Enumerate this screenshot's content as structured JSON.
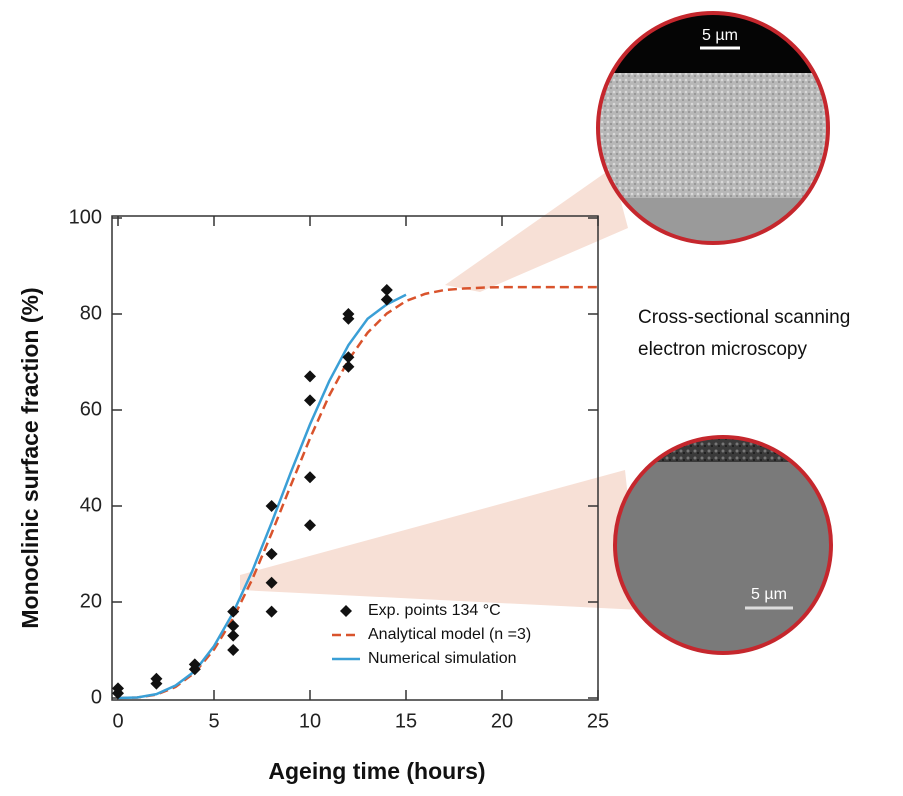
{
  "chart_data": {
    "type": "scatter-line",
    "xlabel": "Ageing time (hours)",
    "ylabel": "Monoclinic surface fraction (%)",
    "xlim": [
      0,
      25
    ],
    "ylim": [
      0,
      100
    ],
    "xticks": [
      0,
      5,
      10,
      15,
      20,
      25
    ],
    "yticks": [
      0,
      20,
      40,
      60,
      80,
      100
    ],
    "legend_position": "lower right",
    "series": [
      {
        "name": "Exp. points 134 °C",
        "kind": "scatter",
        "color": "#111111",
        "x": [
          0,
          0,
          2,
          2,
          4,
          4,
          6,
          6,
          6,
          6,
          8,
          8,
          8,
          8,
          10,
          10,
          10,
          10,
          12,
          12,
          12,
          12,
          14,
          14
        ],
        "values": [
          1,
          2,
          3,
          4,
          6,
          7,
          10,
          13,
          15,
          18,
          18,
          24,
          30,
          40,
          36,
          46,
          62,
          67,
          69,
          71,
          79,
          80,
          83,
          85
        ]
      },
      {
        "name": "Analytical model (n =3)",
        "kind": "dashed",
        "color": "#d9532c",
        "x": [
          0,
          1,
          2,
          3,
          4,
          5,
          6,
          7,
          8,
          9,
          10,
          11,
          12,
          13,
          14,
          15,
          16,
          17,
          18,
          19,
          20,
          21,
          22,
          23,
          24,
          25
        ],
        "values": [
          0,
          0.1,
          0.7,
          2.3,
          5.3,
          10.1,
          16.6,
          24.8,
          34.3,
          44.3,
          54.1,
          63.0,
          70.4,
          76.1,
          80.1,
          82.7,
          84.2,
          85.0,
          85.3,
          85.5,
          85.6,
          85.6,
          85.6,
          85.6,
          85.6,
          85.6
        ]
      },
      {
        "name": "Numerical simulation",
        "kind": "solid",
        "color": "#3a9fd6",
        "x": [
          0,
          1,
          2,
          3,
          4,
          5,
          6,
          7,
          8,
          9,
          10,
          11,
          12,
          13,
          14,
          15
        ],
        "values": [
          0,
          0.1,
          0.8,
          2.6,
          5.6,
          10.8,
          17.8,
          26.5,
          36.5,
          47,
          57,
          66,
          73.5,
          79,
          82,
          84
        ]
      }
    ],
    "annotations": {
      "scale_bar_top": "5 µm",
      "scale_bar_bottom": "5 µm",
      "caption_line1": "Cross-sectional scanning",
      "caption_line2": "electron microscopy"
    }
  }
}
